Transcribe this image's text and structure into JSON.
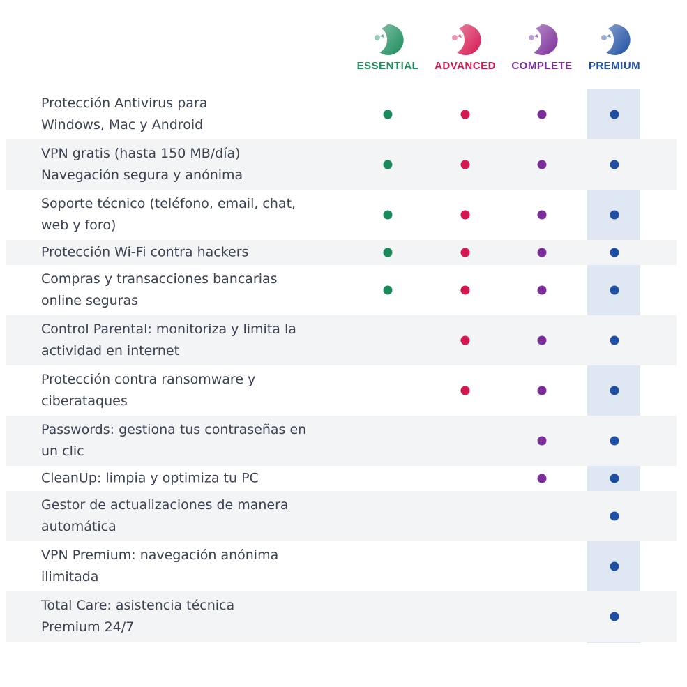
{
  "plans": [
    {
      "name": "ESSENTIAL",
      "color": "#1a8a5a",
      "logo_icon": "essential-logo-icon"
    },
    {
      "name": "ADVANCED",
      "color": "#d4174f",
      "logo_icon": "advanced-logo-icon"
    },
    {
      "name": "COMPLETE",
      "color": "#7b2d99",
      "logo_icon": "complete-logo-icon"
    },
    {
      "name": "PREMIUM",
      "color": "#1e4fa3",
      "logo_icon": "premium-logo-icon"
    }
  ],
  "features": [
    {
      "lines": [
        "Protección Antivirus para",
        "Windows, Mac y Android"
      ],
      "included": [
        true,
        true,
        true,
        true
      ]
    },
    {
      "lines": [
        "VPN gratis (hasta 150 MB/día)",
        "Navegación segura y anónima"
      ],
      "included": [
        true,
        true,
        true,
        true
      ]
    },
    {
      "lines": [
        "Soporte técnico (teléfono, email, chat,",
        "web y foro)"
      ],
      "included": [
        true,
        true,
        true,
        true
      ]
    },
    {
      "lines": [
        "Protección Wi-Fi contra hackers"
      ],
      "included": [
        true,
        true,
        true,
        true
      ]
    },
    {
      "lines": [
        "Compras y transacciones bancarias",
        "online seguras"
      ],
      "included": [
        true,
        true,
        true,
        true
      ]
    },
    {
      "lines": [
        "Control Parental: monitoriza y limita la",
        "actividad en internet"
      ],
      "included": [
        false,
        true,
        true,
        true
      ]
    },
    {
      "lines": [
        "Protección contra ransomware y",
        "ciberataques"
      ],
      "included": [
        false,
        true,
        true,
        true
      ]
    },
    {
      "lines": [
        "Passwords: gestiona tus contraseñas en",
        "un clic"
      ],
      "included": [
        false,
        false,
        true,
        true
      ]
    },
    {
      "lines": [
        "CleanUp: limpia y optimiza tu PC"
      ],
      "included": [
        false,
        false,
        true,
        true
      ]
    },
    {
      "lines": [
        "Gestor de actualizaciones de manera",
        "automática"
      ],
      "included": [
        false,
        false,
        false,
        true
      ]
    },
    {
      "lines": [
        "VPN Premium: navegación anónima",
        "ilimitada"
      ],
      "included": [
        false,
        false,
        false,
        true
      ]
    },
    {
      "lines": [
        "Total Care: asistencia técnica",
        "Premium 24/7"
      ],
      "included": [
        false,
        false,
        false,
        true
      ]
    }
  ]
}
